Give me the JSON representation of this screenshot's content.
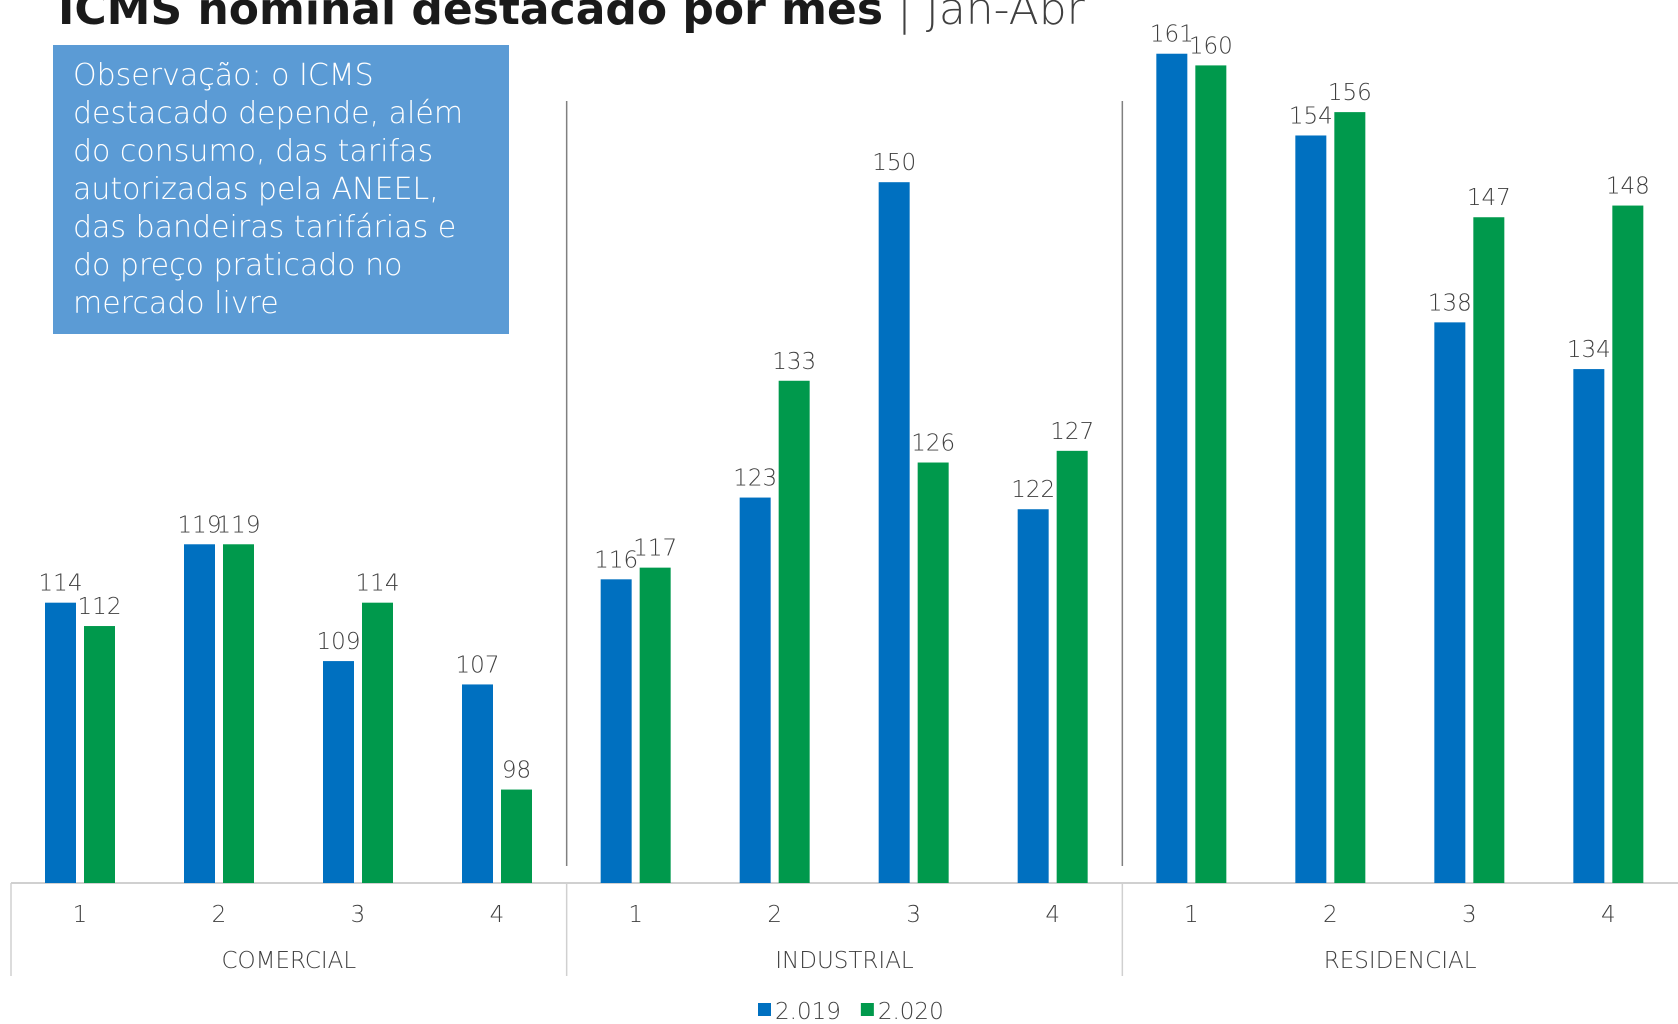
{
  "chart_data": {
    "type": "bar",
    "title": "ICMS nominal destacado por mês",
    "subtitle": "| Jan-Abr",
    "annotation": "Observação: o ICMS destacado depende, além do consumo, das tarifas autorizadas pela ANEEL, das bandeiras tarifárias e do preço praticado no mercado livre",
    "groups": [
      {
        "name": "COMERCIAL",
        "categories": [
          "1",
          "2",
          "3",
          "4"
        ]
      },
      {
        "name": "INDUSTRIAL",
        "categories": [
          "1",
          "2",
          "3",
          "4"
        ]
      },
      {
        "name": "RESIDENCIAL",
        "categories": [
          "1",
          "2",
          "3",
          "4"
        ]
      }
    ],
    "series": [
      {
        "name": "2.019",
        "color": "#0070c0",
        "values": [
          114,
          119,
          109,
          107,
          116,
          123,
          150,
          122,
          161,
          154,
          138,
          134
        ]
      },
      {
        "name": "2.020",
        "color": "#00994c",
        "values": [
          112,
          119,
          114,
          98,
          117,
          133,
          126,
          127,
          160,
          156,
          147,
          148
        ]
      }
    ],
    "ylim": [
      90,
      165
    ],
    "legend": "bottom"
  }
}
